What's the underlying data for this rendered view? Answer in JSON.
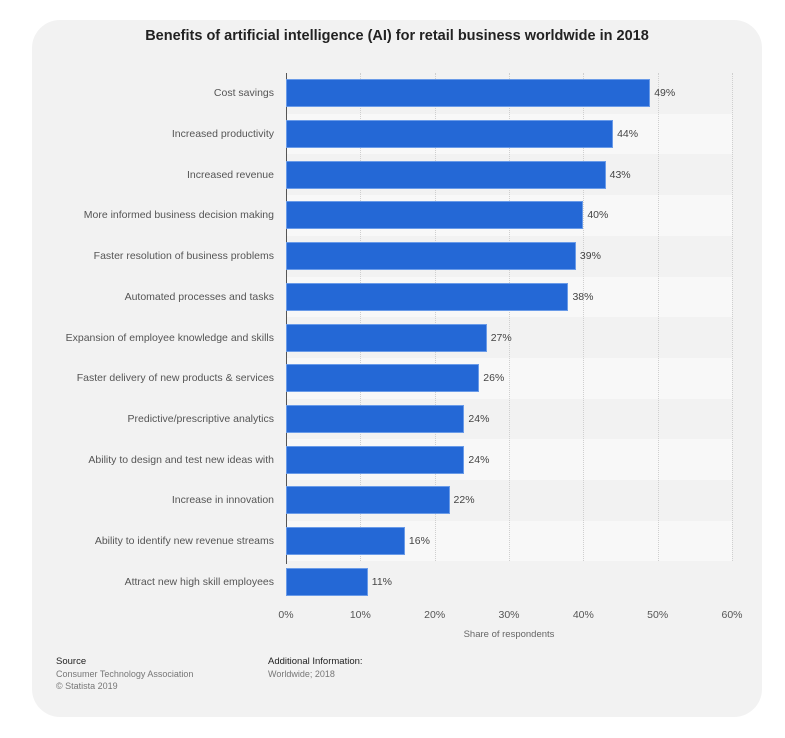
{
  "title": "Benefits of artificial intelligence (AI) for retail business worldwide in 2018",
  "xaxis": {
    "label": "Share of respondents",
    "ticks": [
      "0%",
      "10%",
      "20%",
      "30%",
      "40%",
      "50%",
      "60%"
    ]
  },
  "bars": [
    {
      "label": "Cost savings",
      "value": 49,
      "value_label": "49%"
    },
    {
      "label": "Increased productivity",
      "value": 44,
      "value_label": "44%"
    },
    {
      "label": "Increased revenue",
      "value": 43,
      "value_label": "43%"
    },
    {
      "label": "More informed business decision making",
      "value": 40,
      "value_label": "40%"
    },
    {
      "label": "Faster resolution of business problems",
      "value": 39,
      "value_label": "39%"
    },
    {
      "label": "Automated processes and tasks",
      "value": 38,
      "value_label": "38%"
    },
    {
      "label": "Expansion of employee knowledge and skills",
      "value": 27,
      "value_label": "27%"
    },
    {
      "label": "Faster delivery of new products & services",
      "value": 26,
      "value_label": "26%"
    },
    {
      "label": "Predictive/prescriptive analytics",
      "value": 24,
      "value_label": "24%"
    },
    {
      "label": "Ability to design and test new ideas with",
      "value": 24,
      "value_label": "24%"
    },
    {
      "label": "Increase in innovation",
      "value": 22,
      "value_label": "22%"
    },
    {
      "label": "Ability to identify new revenue streams",
      "value": 16,
      "value_label": "16%"
    },
    {
      "label": "Attract new high skill employees",
      "value": 11,
      "value_label": "11%"
    }
  ],
  "colors": {
    "bar": "#2468d6",
    "background": "#f2f2f2"
  },
  "footer": {
    "source_heading": "Source",
    "source_lines": [
      "Consumer Technology Association",
      "© Statista 2019"
    ],
    "additional_heading": "Additional Information:",
    "additional_lines": [
      "Worldwide; 2018"
    ]
  },
  "chart_data": {
    "type": "bar",
    "orientation": "horizontal",
    "title": "Benefits of artificial intelligence (AI) for retail business worldwide in 2018",
    "categories": [
      "Cost savings",
      "Increased productivity",
      "Increased revenue",
      "More informed business decision making",
      "Faster resolution of business problems",
      "Automated processes and tasks",
      "Expansion of employee knowledge and skills",
      "Faster delivery of new products & services",
      "Predictive/prescriptive analytics",
      "Ability to design and test new ideas with",
      "Increase in innovation",
      "Ability to identify new revenue streams",
      "Attract new high skill employees"
    ],
    "values": [
      49,
      44,
      43,
      40,
      39,
      38,
      27,
      26,
      24,
      24,
      22,
      16,
      11
    ],
    "xlabel": "Share of respondents",
    "ylabel": "",
    "xlim": [
      0,
      60
    ],
    "xticks": [
      "0%",
      "10%",
      "20%",
      "30%",
      "40%",
      "50%",
      "60%"
    ],
    "grid": true,
    "data_labels": true,
    "legend": null
  }
}
